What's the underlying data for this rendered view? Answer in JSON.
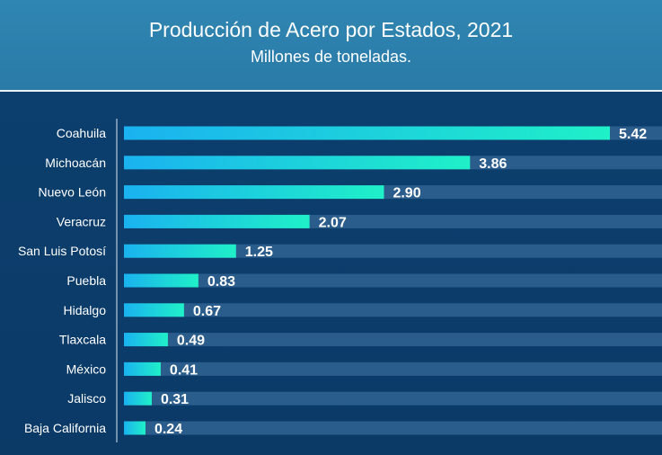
{
  "header": {
    "title": "Producción de Acero por Estados, 2021",
    "subtitle": "Millones de toneladas."
  },
  "colors": {
    "header_bg": "#2f86b2",
    "plot_bg": "#0c3f6e",
    "bar_start": "#1ab2f0",
    "bar_end": "#1ff0c8",
    "track": "#2a5d8c",
    "text": "#ffffff"
  },
  "chart_data": {
    "type": "bar",
    "orientation": "horizontal",
    "title": "Producción de Acero por Estados, 2021",
    "subtitle": "Millones de toneladas.",
    "categories": [
      "Coahuila",
      "Michoacán",
      "Nuevo León",
      "Veracruz",
      "San Luis Potosí",
      "Puebla",
      "Hidalgo",
      "Tlaxcala",
      "México",
      "Jalisco",
      "Baja California"
    ],
    "values": [
      5.42,
      3.86,
      2.9,
      2.07,
      1.25,
      0.83,
      0.67,
      0.49,
      0.41,
      0.31,
      0.24
    ],
    "value_labels": [
      "5.42",
      "3.86",
      "2.90",
      "2.07",
      "1.25",
      "0.83",
      "0.67",
      "0.49",
      "0.41",
      "0.31",
      "0.24"
    ],
    "xlim": [
      0,
      5.42
    ],
    "grid": false,
    "legend": "none"
  }
}
